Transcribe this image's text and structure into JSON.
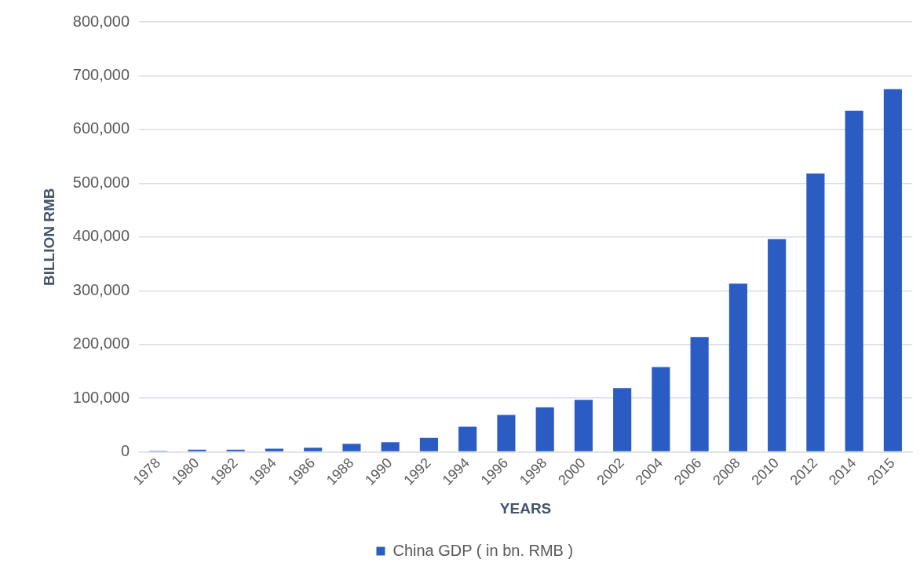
{
  "chart_data": {
    "type": "bar",
    "xlabel": "YEARS",
    "ylabel": "BILLION RMB",
    "categories": [
      "1978",
      "1980",
      "1982",
      "1984",
      "1986",
      "1988",
      "1990",
      "1992",
      "1994",
      "1996",
      "1998",
      "2000",
      "2002",
      "2004",
      "2006",
      "2008",
      "2010",
      "2012",
      "2014",
      "2015"
    ],
    "series": [
      {
        "name": "China GDP ( in bn. RMB )",
        "color": "#2b5cc4",
        "values": [
          2000,
          4000,
          4000,
          6000,
          8000,
          15000,
          18000,
          26000,
          47000,
          69000,
          83000,
          97000,
          119000,
          158000,
          214000,
          313000,
          396000,
          518000,
          635000,
          675000
        ]
      }
    ],
    "ylim": [
      0,
      800000
    ],
    "yticks": [
      0,
      {
        "value": 100000,
        "label": "100,000"
      },
      {
        "value": 200000,
        "label": "200,000"
      },
      {
        "value": 300000,
        "label": "300,000"
      },
      {
        "value": 400000,
        "label": "400,000"
      },
      {
        "value": 500000,
        "label": "500,000"
      },
      {
        "value": 600000,
        "label": "600,000"
      },
      {
        "value": 700000,
        "label": "700,000"
      },
      {
        "value": 800000,
        "label": "800,000"
      }
    ],
    "grid": "y",
    "legend": "bottom"
  }
}
